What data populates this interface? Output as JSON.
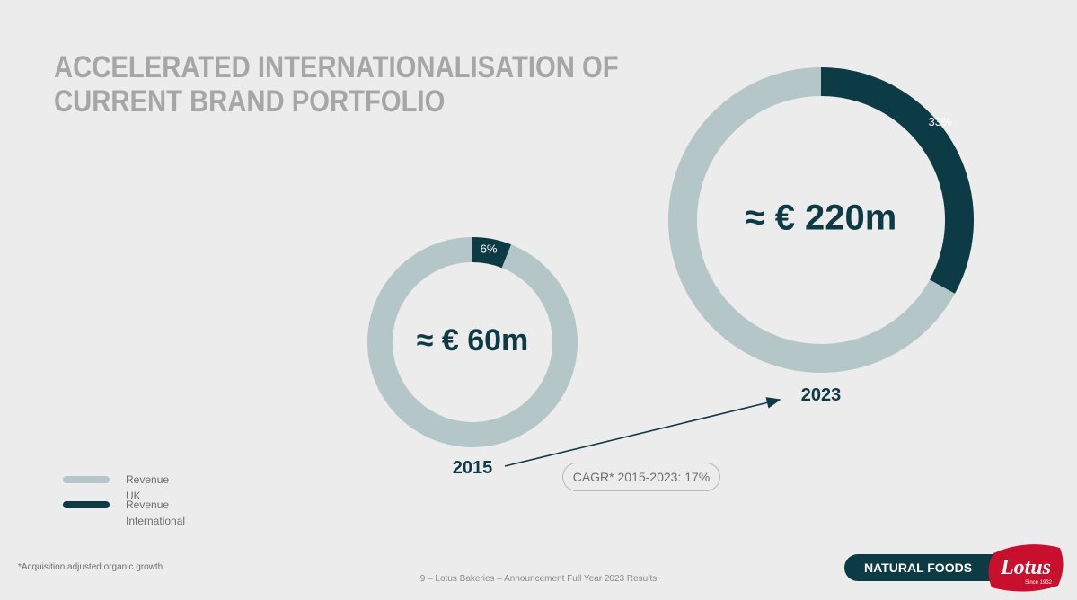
{
  "title": {
    "line1": "ACCELERATED INTERNATIONALISATION OF",
    "line2": "CURRENT BRAND PORTFOLIO"
  },
  "chart_data": [
    {
      "type": "donut",
      "year": "2015",
      "center_label": "≈ € 60m",
      "series": [
        {
          "name": "Revenue UK",
          "value": 94,
          "color": "#b4c6c8"
        },
        {
          "name": "Revenue International",
          "value": 6,
          "color": "#0d3b45",
          "label": "6%"
        }
      ]
    },
    {
      "type": "donut",
      "year": "2023",
      "center_label": "≈ € 220m",
      "series": [
        {
          "name": "Revenue UK",
          "value": 67,
          "color": "#b4c6c8"
        },
        {
          "name": "Revenue International",
          "value": 33,
          "color": "#0d3b45",
          "label": "33%"
        }
      ]
    }
  ],
  "cagr_label": "CAGR* 2015-2023: 17%",
  "legend": [
    {
      "label": "Revenue UK",
      "color": "#b4c6c8"
    },
    {
      "label": "Revenue International",
      "color": "#0d3b45"
    }
  ],
  "footnote": "*Acquisition adjusted organic growth",
  "footer": "9 – Lotus Bakeries – Announcement Full Year 2023 Results",
  "brand": {
    "tagline": "NATURAL FOODS",
    "logo_text": "Lotus",
    "logo_subtext": "Since 1932"
  }
}
